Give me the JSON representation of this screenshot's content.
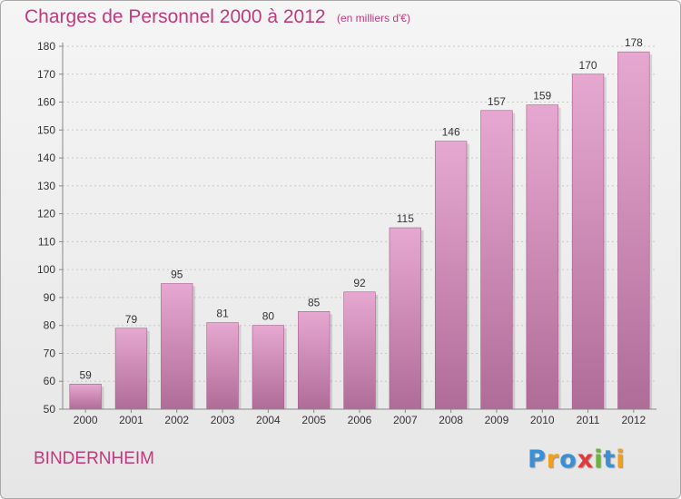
{
  "header": {
    "title": "Charges de Personnel 2000 à 2012",
    "subtitle": "(en milliers d'€)"
  },
  "footer": {
    "commune": "BINDERNHEIM",
    "logo_text": "Proxiti",
    "logo_letters": [
      {
        "ch": "P",
        "color": "#3a8fd6"
      },
      {
        "ch": "r",
        "color": "#f0a01c"
      },
      {
        "ch": "o",
        "color": "#3a8fd6"
      },
      {
        "ch": "x",
        "color": "#e23a3a"
      },
      {
        "ch": "i",
        "color": "#6bb33c"
      },
      {
        "ch": "t",
        "color": "#3a8fd6"
      },
      {
        "ch": "i",
        "color": "#f0a01c"
      }
    ]
  },
  "chart_data": {
    "type": "bar",
    "title": "Charges de Personnel 2000 à 2012",
    "subtitle": "(en milliers d'€)",
    "categories": [
      "2000",
      "2001",
      "2002",
      "2003",
      "2004",
      "2005",
      "2006",
      "2007",
      "2008",
      "2009",
      "2010",
      "2011",
      "2012"
    ],
    "values": [
      59,
      79,
      95,
      81,
      80,
      85,
      92,
      115,
      146,
      157,
      159,
      170,
      178
    ],
    "ylim": [
      50,
      180
    ],
    "yticks": [
      50,
      60,
      70,
      80,
      90,
      100,
      110,
      120,
      130,
      140,
      150,
      160,
      170,
      180
    ],
    "grid": true,
    "legend": "none",
    "colors": {
      "bar_top": "#e6a8d0",
      "bar_bottom": "#b06c98",
      "bar_edge": "#a95b8e",
      "grid": "#c8c8c8",
      "axis": "#888888",
      "text": "#333333",
      "accent": "#c03a7e"
    }
  }
}
